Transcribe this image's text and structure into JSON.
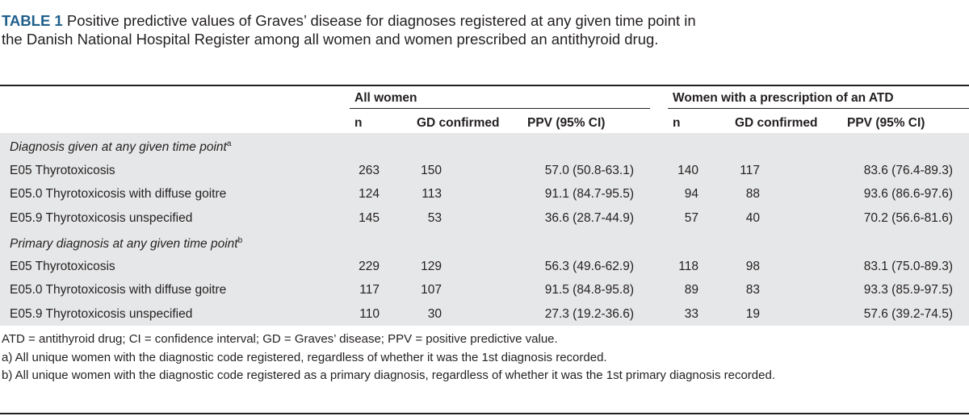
{
  "caption": {
    "label": "TABLE 1",
    "text": "Positive predictive values of Graves’ disease for diagnoses registered at any given time point in the Danish National Hospital Register among all women and women prescribed an antithyroid drug."
  },
  "groups": {
    "all_women": "All women",
    "atd_women": "Women with a prescription of an ATD"
  },
  "columns": {
    "n": "n",
    "gd": "GD confirmed",
    "ppv": "PPV (95% CI)"
  },
  "sections": [
    {
      "title": "Diagnosis given at any given time point",
      "sup": "a",
      "rows": [
        {
          "label": "E05 Thyrotoxicosis",
          "n1": "263",
          "gd1": "150",
          "ppv1": "57.0 (50.8-63.1)",
          "n2": "140",
          "gd2": "117",
          "ppv2": "83.6 (76.4-89.3)"
        },
        {
          "label": "E05.0 Thyrotoxicosis with diffuse goitre",
          "n1": "124",
          "gd1": "113",
          "ppv1": "91.1 (84.7-95.5)",
          "n2": "94",
          "gd2": "88",
          "ppv2": "93.6 (86.6-97.6)"
        },
        {
          "label": "E05.9 Thyrotoxicosis unspecified",
          "n1": "145",
          "gd1": "53",
          "ppv1": "36.6 (28.7-44.9)",
          "n2": "57",
          "gd2": "40",
          "ppv2": "70.2 (56.6-81.6)"
        }
      ]
    },
    {
      "title": "Primary diagnosis at any given time point",
      "sup": "b",
      "rows": [
        {
          "label": "E05 Thyrotoxicosis",
          "n1": "229",
          "gd1": "129",
          "ppv1": "56.3 (49.6-62.9)",
          "n2": "118",
          "gd2": "98",
          "ppv2": "83.1 (75.0-89.3)"
        },
        {
          "label": "E05.0 Thyrotoxicosis with diffuse goitre",
          "n1": "117",
          "gd1": "107",
          "ppv1": "91.5 (84.8-95.8)",
          "n2": "89",
          "gd2": "83",
          "ppv2": "93.3 (85.9-97.5)"
        },
        {
          "label": "E05.9 Thyrotoxicosis unspecified",
          "n1": "110",
          "gd1": "30",
          "ppv1": "27.3 (19.2-36.6)",
          "n2": "33",
          "gd2": "19",
          "ppv2": "57.6 (39.2-74.5)"
        }
      ]
    }
  ],
  "footnotes": {
    "abbrev": "ATD = antithyroid drug; CI = confidence interval; GD = Graves’ disease; PPV = positive predictive value.",
    "a": "a) All unique women with the diagnostic code registered, regardless of whether it was the 1st diagnosis recorded.",
    "b": "b) All unique women with the diagnostic code registered as a primary diagnosis, regardless of whether it was the 1st primary diagnosis recorded."
  }
}
